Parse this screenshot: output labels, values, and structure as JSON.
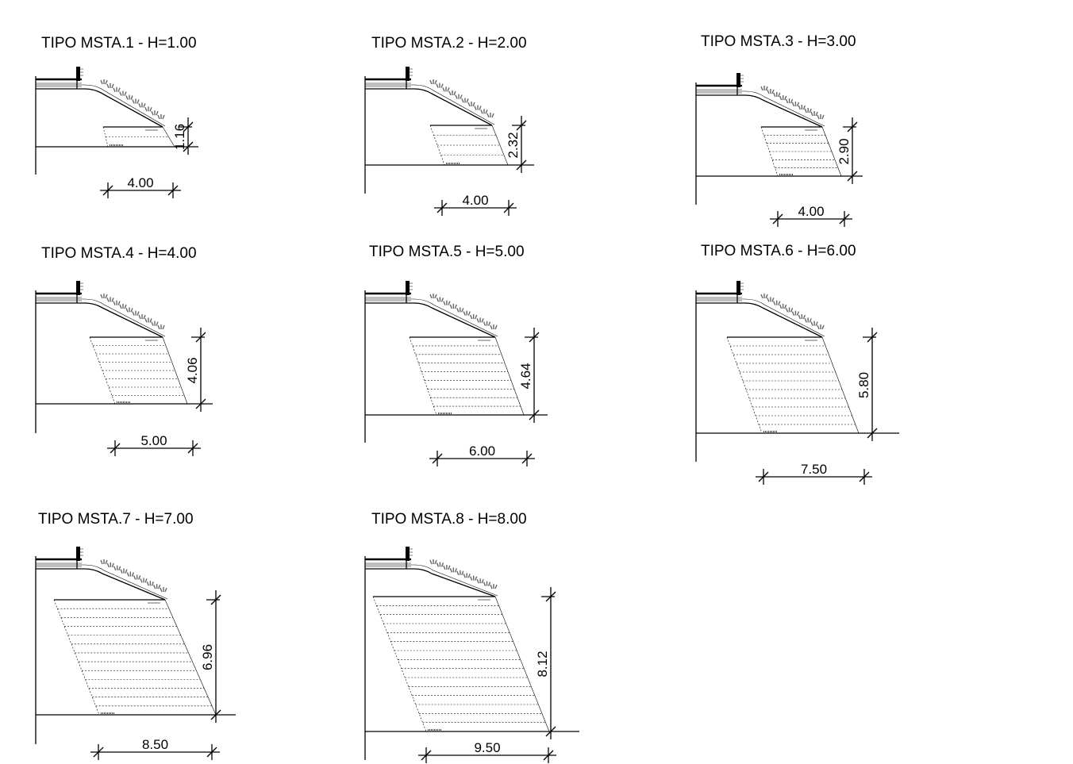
{
  "sections": [
    {
      "id": "msta-1",
      "title": "TIPO MSTA.1 - H=1.00",
      "height_label": "1.16",
      "base_label": "4.00"
    },
    {
      "id": "msta-2",
      "title": "TIPO MSTA.2 - H=2.00",
      "height_label": "2.32",
      "base_label": "4.00"
    },
    {
      "id": "msta-3",
      "title": "TIPO MSTA.3 - H=3.00",
      "height_label": "2.90",
      "base_label": "4.00"
    },
    {
      "id": "msta-4",
      "title": "TIPO MSTA.4 - H=4.00",
      "height_label": "4.06",
      "base_label": "5.00"
    },
    {
      "id": "msta-5",
      "title": "TIPO MSTA.5 - H=5.00",
      "height_label": "4.64",
      "base_label": "6.00"
    },
    {
      "id": "msta-6",
      "title": "TIPO MSTA.6 - H=6.00",
      "height_label": "5.80",
      "base_label": "7.50"
    },
    {
      "id": "msta-7",
      "title": "TIPO MSTA.7 - H=7.00",
      "height_label": "6.96",
      "base_label": "8.50"
    },
    {
      "id": "msta-8",
      "title": "TIPO MSTA.8 - H=8.00",
      "height_label": "8.12",
      "base_label": "9.50"
    }
  ]
}
